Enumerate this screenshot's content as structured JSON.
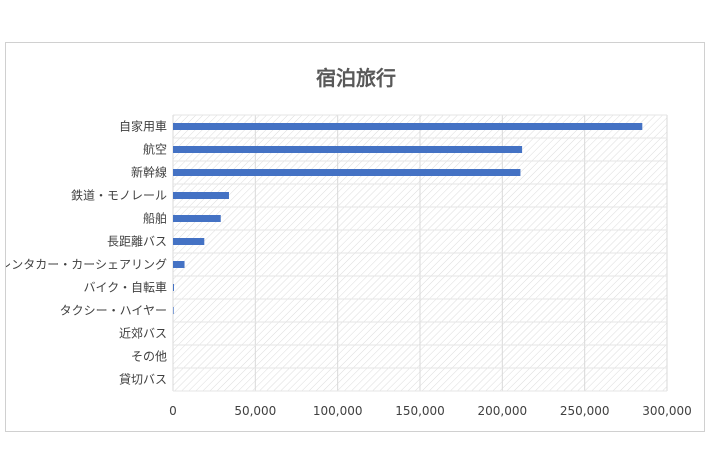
{
  "chart_data": {
    "type": "bar",
    "orientation": "horizontal",
    "title": "宿泊旅行",
    "categories": [
      "自家用車",
      "航空",
      "新幹線",
      "鉄道・モノレール",
      "船舶",
      "長距離バス",
      "レンタカー・カーシェアリング",
      "バイク・自転車",
      "タクシー・ハイヤー",
      "近郊バス",
      "その他",
      "貸切バス"
    ],
    "values": [
      285000,
      212000,
      211000,
      34000,
      29000,
      19000,
      7000,
      600,
      400,
      0,
      0,
      0
    ],
    "xlim": [
      0,
      300000
    ],
    "x_ticks": [
      "0",
      "50,000",
      "100,000",
      "150,000",
      "200,000",
      "250,000",
      "300,000"
    ],
    "x_tick_values": [
      0,
      50000,
      100000,
      150000,
      200000,
      250000,
      300000
    ],
    "grid": true,
    "bar_color": "#4472c4"
  }
}
